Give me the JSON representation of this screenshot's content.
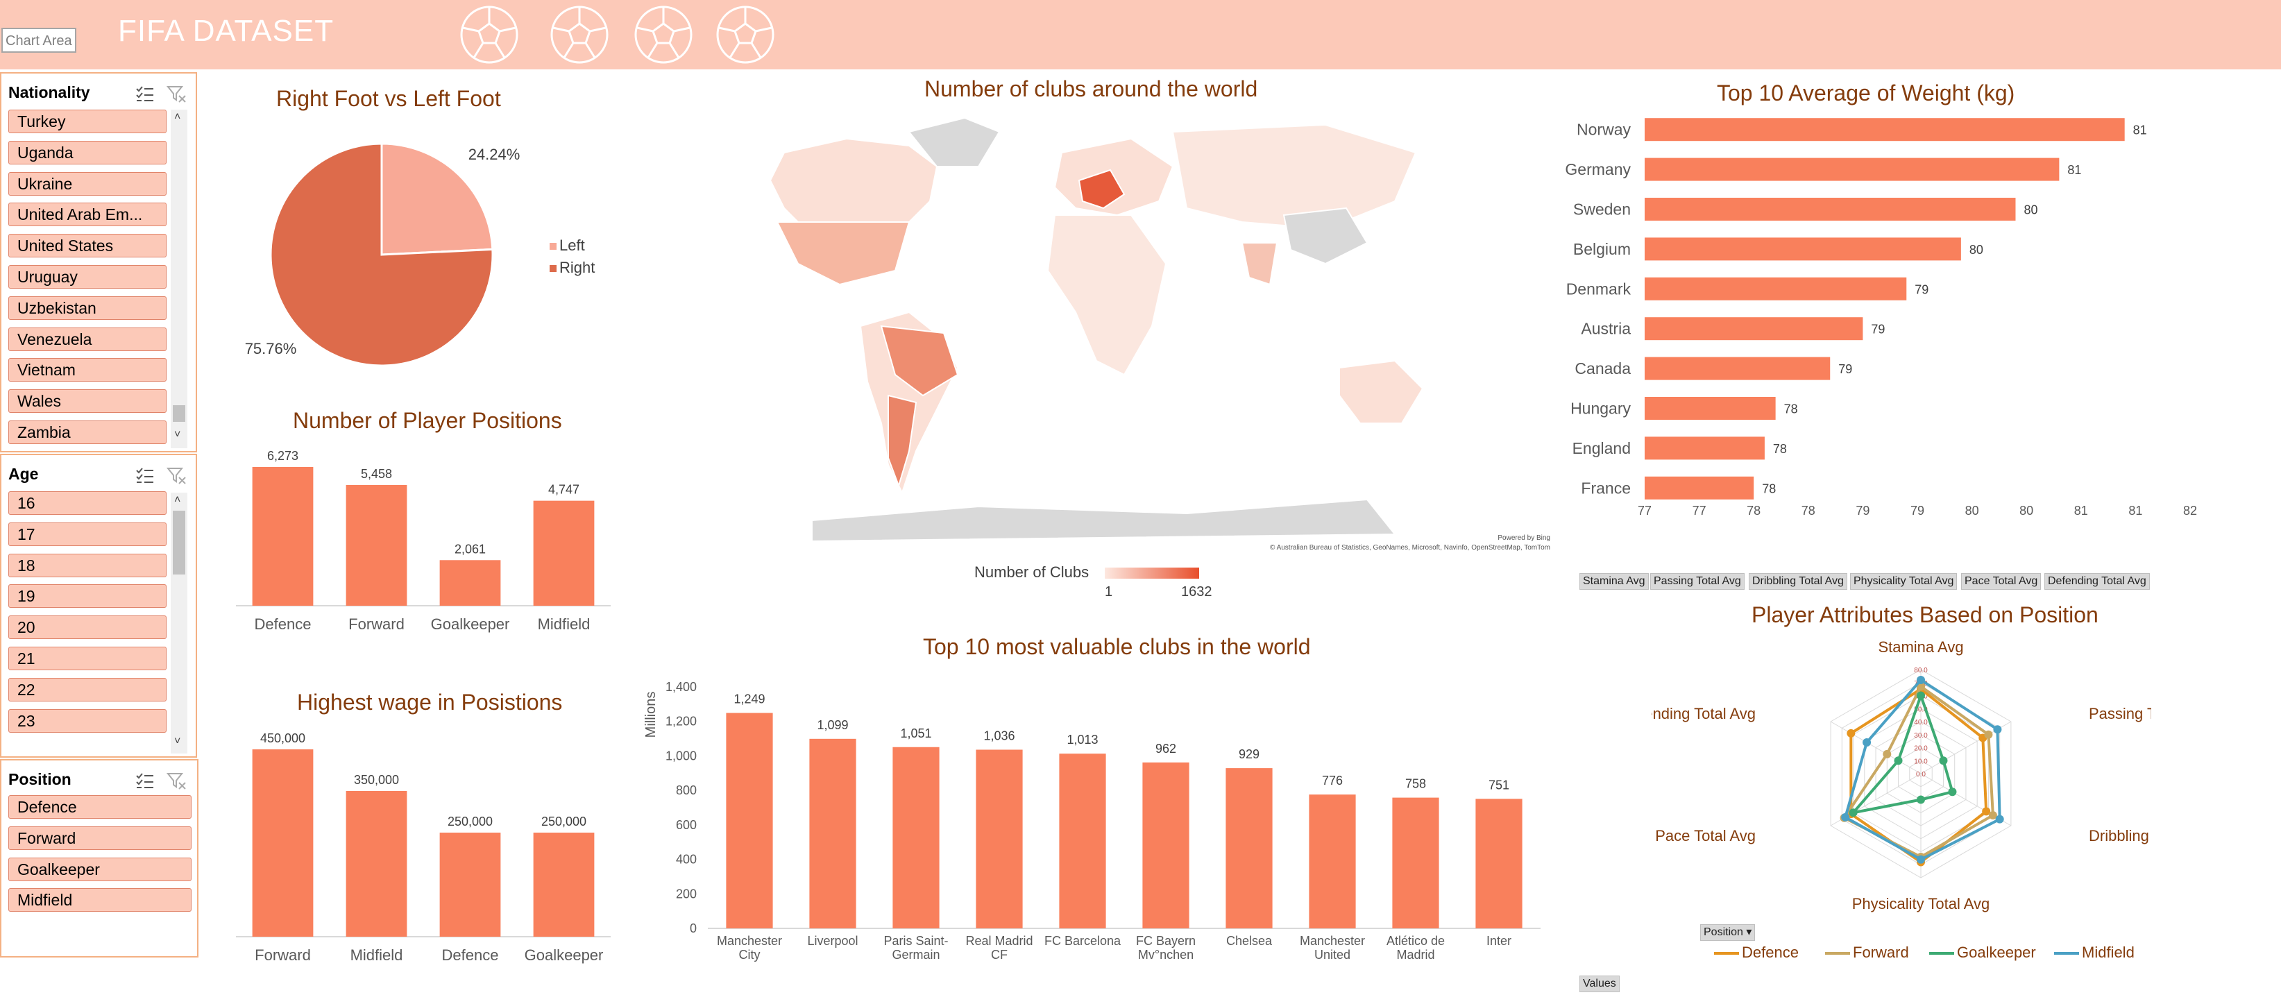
{
  "header": {
    "chart_area_label": "Chart Area",
    "title": "FIFA DATASET"
  },
  "slicers": {
    "nationality": {
      "title": "Nationality",
      "items": [
        "Turkey",
        "Uganda",
        "Ukraine",
        "United Arab Em...",
        "United States",
        "Uruguay",
        "Uzbekistan",
        "Venezuela",
        "Vietnam",
        "Wales",
        "Zambia"
      ]
    },
    "age": {
      "title": "Age",
      "items": [
        "16",
        "17",
        "18",
        "19",
        "20",
        "21",
        "22",
        "23"
      ]
    },
    "position": {
      "title": "Position",
      "items": [
        "Defence",
        "Forward",
        "Goalkeeper",
        "Midfield"
      ]
    }
  },
  "colors": {
    "accent": "#f9805c",
    "pie_left": "#f8a996",
    "pie_right": "#dd6b4b",
    "header": "#fcc9b8",
    "title_text": "#843c0c"
  },
  "map": {
    "title": "Number of clubs around the world",
    "legend_label": "Number of Clubs",
    "legend_min": "1",
    "legend_max": "1632",
    "credit_1": "Powered by Bing",
    "credit_2": "© Australian Bureau of Statistics, GeoNames, Microsoft, Navinfo, OpenStreetMap, TomTom"
  },
  "radar": {
    "fields": [
      "Stamina Avg",
      "Passing Total Avg",
      "Dribbling Total Avg",
      "Physicality Total Avg",
      "Pace Total  Avg",
      "Defending Total  Avg"
    ],
    "values_button": "Values",
    "position_button": "Position"
  },
  "chart_data": [
    {
      "type": "pie",
      "title": "Right Foot vs Left Foot",
      "categories": [
        "Left",
        "Right"
      ],
      "values": [
        24.24,
        75.76
      ],
      "labels": [
        "24.24%",
        "75.76%"
      ],
      "legend": "right"
    },
    {
      "type": "bar",
      "title": "Number of Player Positions",
      "categories": [
        "Defence",
        "Forward",
        "Goalkeeper",
        "Midfield"
      ],
      "values": [
        6273,
        5458,
        2061,
        4747
      ],
      "value_labels": [
        "6,273",
        "5,458",
        "2,061",
        "4,747"
      ]
    },
    {
      "type": "bar",
      "title": "Highest wage in Posistions",
      "categories": [
        "Forward",
        "Midfield",
        "Defence",
        "Goalkeeper"
      ],
      "values": [
        450000,
        350000,
        250000,
        250000
      ],
      "value_labels": [
        "450,000",
        "350,000",
        "250,000",
        "250,000"
      ]
    },
    {
      "type": "bar",
      "title": "Top 10 most valuable clubs in the world",
      "ylabel": "Millions",
      "ylim": [
        0,
        1400
      ],
      "yticks": [
        "0",
        "200",
        "400",
        "600",
        "800",
        "1,000",
        "1,200",
        "1,400"
      ],
      "categories": [
        [
          "Manchester",
          "City"
        ],
        [
          "Liverpool"
        ],
        [
          "Paris Saint-",
          "Germain"
        ],
        [
          "Real Madrid",
          "CF"
        ],
        [
          "FC Barcelona"
        ],
        [
          "FC Bayern",
          "Mv°nchen"
        ],
        [
          "Chelsea"
        ],
        [
          "Manchester",
          "United"
        ],
        [
          "Atlético de",
          "Madrid"
        ],
        [
          "Inter"
        ]
      ],
      "values": [
        1249,
        1099,
        1051,
        1036,
        1013,
        962,
        929,
        776,
        758,
        751
      ],
      "value_labels": [
        "1,249",
        "1,099",
        "1,051",
        "1,036",
        "1,013",
        "962",
        "929",
        "776",
        "758",
        "751"
      ]
    },
    {
      "type": "bar",
      "orientation": "horizontal",
      "title": "Top 10 Average of Weight (kg)",
      "categories": [
        "Norway",
        "Germany",
        "Sweden",
        "Belgium",
        "Denmark",
        "Austria",
        "Canada",
        "Hungary",
        "England",
        "France"
      ],
      "values": [
        81.4,
        80.8,
        80.4,
        79.9,
        79.4,
        79.0,
        78.7,
        78.2,
        78.1,
        78.0
      ],
      "value_labels": [
        "81",
        "81",
        "80",
        "80",
        "79",
        "79",
        "79",
        "78",
        "78",
        "78"
      ],
      "xlim": [
        77,
        82
      ],
      "xticks": [
        "77",
        "77",
        "78",
        "78",
        "79",
        "79",
        "80",
        "80",
        "81",
        "81",
        "82"
      ]
    },
    {
      "type": "radar",
      "title": "Player Attributes Based on Position",
      "axes": [
        "Stamina Avg",
        "Passing Total Avg",
        "Dribbling Total Avg",
        "Physicality Total Avg",
        "Pace Total  Avg",
        "Defending Total  Avg"
      ],
      "rlim": [
        0,
        80
      ],
      "rticks": [
        "0.0",
        "10.0",
        "20.0",
        "30.0",
        "40.0",
        "50.0",
        "60.0",
        "70.0",
        "80.0"
      ],
      "series": [
        {
          "name": "Defence",
          "color": "#e69520",
          "values": [
            65,
            55,
            58,
            68,
            62,
            62
          ]
        },
        {
          "name": "Forward",
          "color": "#c9a862",
          "values": [
            67,
            60,
            64,
            64,
            68,
            30
          ]
        },
        {
          "name": "Goalkeeper",
          "color": "#3daa73",
          "values": [
            60,
            20,
            28,
            20,
            60,
            20
          ]
        },
        {
          "name": "Midfield",
          "color": "#4aa0c4",
          "values": [
            72,
            68,
            70,
            66,
            67,
            48
          ]
        }
      ]
    }
  ]
}
